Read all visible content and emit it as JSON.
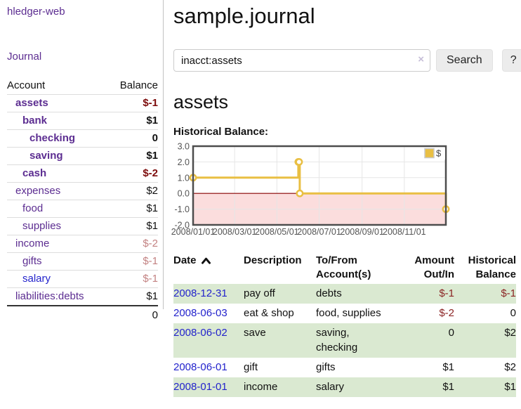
{
  "app": {
    "brand": "hledger-web",
    "nav_journal": "Journal"
  },
  "colors": {
    "accent_purple": "#5c2d91",
    "link_blue": "#2323cc",
    "negative_strong": "#7d0c0c",
    "negative_light": "#c38282",
    "register_alt_row": "#dae9d1"
  },
  "sidebar": {
    "accounts_header": {
      "account": "Account",
      "balance": "Balance"
    },
    "accounts": [
      {
        "name": "assets",
        "balance": "$-1",
        "indent": 1,
        "bold": true,
        "neg": "strong"
      },
      {
        "name": "bank",
        "balance": "$1",
        "indent": 2,
        "bold": true,
        "neg": null
      },
      {
        "name": "checking",
        "balance": "0",
        "indent": 3,
        "bold": true,
        "neg": null
      },
      {
        "name": "saving",
        "balance": "$1",
        "indent": 3,
        "bold": true,
        "neg": null
      },
      {
        "name": "cash",
        "balance": "$-2",
        "indent": 2,
        "bold": true,
        "neg": "strong"
      },
      {
        "name": "expenses",
        "balance": "$2",
        "indent": 1,
        "bold": false,
        "neg": null
      },
      {
        "name": "food",
        "balance": "$1",
        "indent": 2,
        "bold": false,
        "neg": null
      },
      {
        "name": "supplies",
        "balance": "$1",
        "indent": 2,
        "bold": false,
        "neg": null
      },
      {
        "name": "income",
        "balance": "$-2",
        "indent": 1,
        "bold": false,
        "neg": "light"
      },
      {
        "name": "gifts",
        "balance": "$-1",
        "indent": 2,
        "bold": false,
        "neg": "light"
      },
      {
        "name": "salary",
        "balance": "$-1",
        "indent": 2,
        "bold": false,
        "neg": "light",
        "link": "unvisited"
      },
      {
        "name": "liabilities:debts",
        "balance": "$1",
        "indent": 1,
        "bold": false,
        "neg": null
      }
    ],
    "total": "0"
  },
  "header": {
    "title": "sample.journal"
  },
  "search": {
    "value": "inacct:assets",
    "clear_icon": "×",
    "button": "Search",
    "help_button": "?"
  },
  "account_page": {
    "title": "assets",
    "chart_label": "Historical Balance:"
  },
  "chart_data": {
    "type": "line",
    "title": "Historical Balance:",
    "steps": true,
    "series": [
      {
        "name": "$",
        "color": "#e9bf43",
        "points": [
          [
            "2008-01-01",
            1
          ],
          [
            "2008-06-01",
            2
          ],
          [
            "2008-06-02",
            2
          ],
          [
            "2008-06-03",
            0
          ],
          [
            "2008-12-31",
            -1
          ]
        ]
      }
    ],
    "x_range": [
      "2008-01-01",
      "2008-12-31"
    ],
    "x_ticks": [
      "2008/01/01",
      "2008/03/01",
      "2008/05/01",
      "2008/07/01",
      "2008/09/01",
      "2008/11/01"
    ],
    "y_ticks": [
      "3.0",
      "2.0",
      "1.0",
      "0.0",
      "-1.0",
      "-2.0"
    ],
    "ylim": [
      -2,
      3
    ],
    "grid": true,
    "legend": {
      "label": "$",
      "position": "top-right"
    },
    "zero_line_color": "#8b0000",
    "negative_region_fill": "#fbdddd",
    "border_color": "#4d4d4d",
    "gridline_color": "#e6e6e6",
    "tick_label_color": "#545454"
  },
  "register": {
    "columns": [
      "Date",
      "Description",
      "To/From Account(s)",
      "Amount Out/In",
      "Historical Balance"
    ],
    "date_sort_icon": "chevron-up",
    "rows": [
      {
        "date": "2008-12-31",
        "description": "pay off",
        "accounts": "debts",
        "amount": "$-1",
        "balance": "$-1",
        "amount_neg": true,
        "balance_neg": true
      },
      {
        "date": "2008-06-03",
        "description": "eat & shop",
        "accounts": "food, supplies",
        "amount": "$-2",
        "balance": "0",
        "amount_neg": true,
        "balance_neg": false
      },
      {
        "date": "2008-06-02",
        "description": "save",
        "accounts": "saving, checking",
        "amount": "0",
        "balance": "$2",
        "amount_neg": false,
        "balance_neg": false
      },
      {
        "date": "2008-06-01",
        "description": "gift",
        "accounts": "gifts",
        "amount": "$1",
        "balance": "$2",
        "amount_neg": false,
        "balance_neg": false
      },
      {
        "date": "2008-01-01",
        "description": "income",
        "accounts": "salary",
        "amount": "$1",
        "balance": "$1",
        "amount_neg": false,
        "balance_neg": false
      }
    ]
  }
}
